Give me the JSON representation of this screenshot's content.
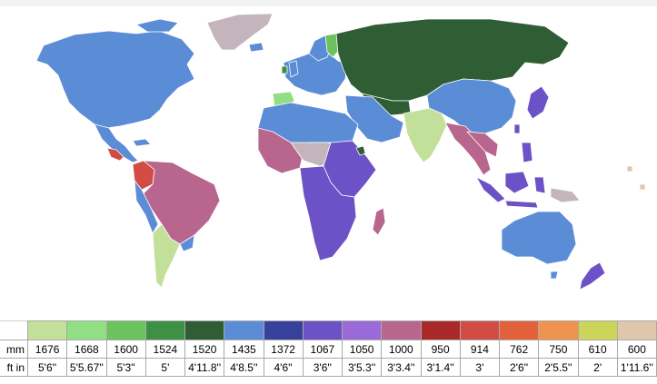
{
  "legend": {
    "row_labels": {
      "mm": "mm",
      "ftin": "ft in"
    },
    "gauges": [
      {
        "mm": "1676",
        "ftin": "5'6''",
        "color": "#c2e09a"
      },
      {
        "mm": "1668",
        "ftin": "5'5.67''",
        "color": "#91de84"
      },
      {
        "mm": "1600",
        "ftin": "5'3''",
        "color": "#6cc25e"
      },
      {
        "mm": "1524",
        "ftin": "5'",
        "color": "#3e9144"
      },
      {
        "mm": "1520",
        "ftin": "4'11.8''",
        "color": "#2f5d34"
      },
      {
        "mm": "1435",
        "ftin": "4'8.5''",
        "color": "#5b8cd6"
      },
      {
        "mm": "1372",
        "ftin": "4'6''",
        "color": "#37409b"
      },
      {
        "mm": "1067",
        "ftin": "3'6''",
        "color": "#6c52c6"
      },
      {
        "mm": "1050",
        "ftin": "3'5.3''",
        "color": "#9a6ad8"
      },
      {
        "mm": "1000",
        "ftin": "3'3.4''",
        "color": "#b9668f"
      },
      {
        "mm": "950",
        "ftin": "3'1.4''",
        "color": "#a92828"
      },
      {
        "mm": "914",
        "ftin": "3'",
        "color": "#d24b45"
      },
      {
        "mm": "762",
        "ftin": "2'6''",
        "color": "#e2603a"
      },
      {
        "mm": "750",
        "ftin": "2'5.5''",
        "color": "#f09350"
      },
      {
        "mm": "610",
        "ftin": "2'",
        "color": "#ccd45a"
      },
      {
        "mm": "600",
        "ftin": "1'11.6''",
        "color": "#dfc6ac"
      }
    ]
  },
  "map": {
    "ocean_color": "#ffffff",
    "no_data_color": "#c3b5bb",
    "border_color": "#ffffff"
  }
}
